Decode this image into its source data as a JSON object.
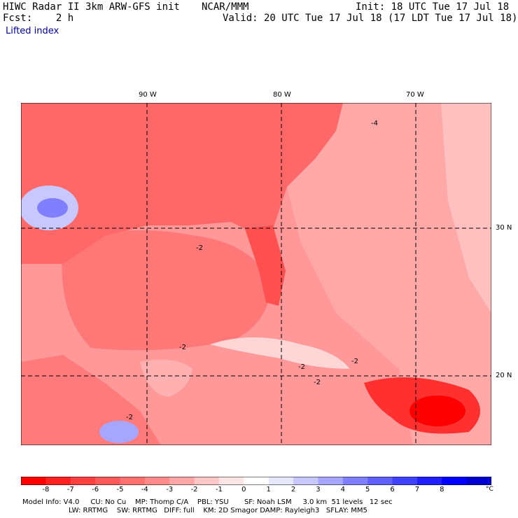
{
  "header": {
    "title": "HIWC Radar II 3km ARW-GFS init",
    "org": "NCAR/MMM",
    "init": "Init: 18 UTC Tue 17 Jul 18",
    "fcst": "Fcst:    2 h",
    "valid": "Valid: 20 UTC Tue 17 Jul 18 (17 LDT Tue 17 Jul 18)",
    "field": "Lifted index"
  },
  "map": {
    "lon_labels": [
      "90 W",
      "80 W",
      "70 W"
    ],
    "lat_labels": [
      "30 N",
      "20 N"
    ],
    "contour_labels": [
      "-2",
      "-2",
      "-2",
      "-2",
      "-2",
      "-2",
      "-4"
    ]
  },
  "colorbar": {
    "unit": "°C",
    "ticks": [
      "-8",
      "-7",
      "-6",
      "-5",
      "-4",
      "-3",
      "-2",
      "-1",
      "0",
      "1",
      "2",
      "3",
      "4",
      "5",
      "6",
      "7",
      "8"
    ],
    "colors": [
      "#ff0000",
      "#ff2020",
      "#ff4040",
      "#ff5a5a",
      "#ff7070",
      "#ff8a8a",
      "#ffa6a6",
      "#ffc8c8",
      "#ffe6e6",
      "#ffffff",
      "#e6e6ff",
      "#c8c8ff",
      "#a6a6ff",
      "#8080ff",
      "#6060ff",
      "#4040ff",
      "#2020ff",
      "#0000ff",
      "#0000d0"
    ]
  },
  "footer": {
    "line1": "Model Info: V4.0     CU: No Cu    MP: Thomp C/A    PBL: YSU       SF: Noah LSM     3.0 km  51 levels   12 sec",
    "line2": "LW: RRTMG    SW: RRTMG   DIFF: full    KM: 2D Smagor DAMP: Rayleigh3   SFLAY: MM5"
  }
}
